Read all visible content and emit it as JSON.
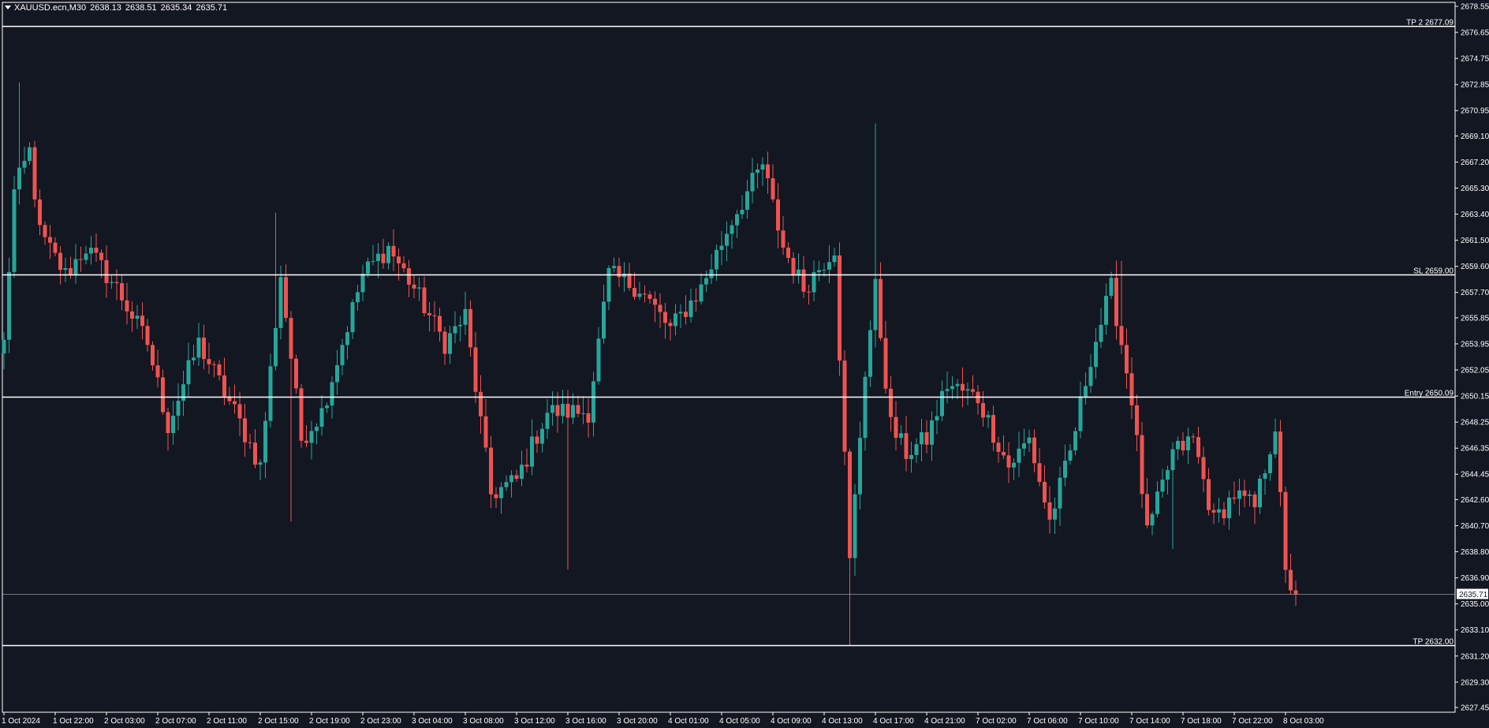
{
  "header": {
    "symbol": "XAUUSD.ecn,M30",
    "open": "2638.13",
    "high": "2638.51",
    "low": "2635.34",
    "close": "2635.71"
  },
  "levels": [
    {
      "label": "TP 2 2677.09",
      "price": 2677.09
    },
    {
      "label": "SL 2659.00",
      "price": 2659.0
    },
    {
      "label": "Entry 2650.09",
      "price": 2650.09
    },
    {
      "label": "TP 2632.00",
      "price": 2632.0
    }
  ],
  "current_price": {
    "label": "2635.71",
    "price": 2635.71
  },
  "colors": {
    "background": "#131722",
    "bull": "#26a69a",
    "bear": "#ef5350",
    "axis_text": "#ffffff",
    "level_line": "#ffffff"
  },
  "chart_data": {
    "type": "candlestick",
    "symbol": "XAUUSD.ecn",
    "timeframe": "M30",
    "ylim": [
      2627.45,
      2678.55
    ],
    "y_ticks": [
      "2678.55",
      "2676.65",
      "2674.75",
      "2672.85",
      "2670.95",
      "2669.10",
      "2667.20",
      "2665.30",
      "2663.40",
      "2661.50",
      "2659.60",
      "2657.70",
      "2655.85",
      "2653.95",
      "2652.05",
      "2650.15",
      "2648.25",
      "2646.35",
      "2644.45",
      "2642.60",
      "2640.70",
      "2638.80",
      "2636.90",
      "2635.00",
      "2633.10",
      "2631.20",
      "2629.30",
      "2627.45"
    ],
    "x_ticks": [
      {
        "label": "1 Oct 2024",
        "index": 0
      },
      {
        "label": "1 Oct 22:00",
        "index": 10
      },
      {
        "label": "2 Oct 03:00",
        "index": 20
      },
      {
        "label": "2 Oct 07:00",
        "index": 30
      },
      {
        "label": "2 Oct 11:00",
        "index": 40
      },
      {
        "label": "2 Oct 15:00",
        "index": 50
      },
      {
        "label": "2 Oct 19:00",
        "index": 60
      },
      {
        "label": "2 Oct 23:00",
        "index": 70
      },
      {
        "label": "3 Oct 04:00",
        "index": 80
      },
      {
        "label": "3 Oct 08:00",
        "index": 90
      },
      {
        "label": "3 Oct 12:00",
        "index": 100
      },
      {
        "label": "3 Oct 16:00",
        "index": 110
      },
      {
        "label": "3 Oct 20:00",
        "index": 120
      },
      {
        "label": "4 Oct 01:00",
        "index": 130
      },
      {
        "label": "4 Oct 05:00",
        "index": 140
      },
      {
        "label": "4 Oct 09:00",
        "index": 150
      },
      {
        "label": "4 Oct 13:00",
        "index": 160
      },
      {
        "label": "4 Oct 17:00",
        "index": 170
      },
      {
        "label": "4 Oct 21:00",
        "index": 180
      },
      {
        "label": "7 Oct 02:00",
        "index": 190
      },
      {
        "label": "7 Oct 06:00",
        "index": 200
      },
      {
        "label": "7 Oct 10:00",
        "index": 210
      },
      {
        "label": "7 Oct 14:00",
        "index": 220
      },
      {
        "label": "7 Oct 18:00",
        "index": 230
      },
      {
        "label": "7 Oct 22:00",
        "index": 240
      },
      {
        "label": "8 Oct 03:00",
        "index": 250
      }
    ],
    "anchors": [
      {
        "i": 0,
        "p": 2654
      },
      {
        "i": 2,
        "p": 2665
      },
      {
        "i": 5,
        "p": 2668
      },
      {
        "i": 7,
        "p": 2662
      },
      {
        "i": 12,
        "p": 2659
      },
      {
        "i": 16,
        "p": 2661
      },
      {
        "i": 22,
        "p": 2658
      },
      {
        "i": 28,
        "p": 2654
      },
      {
        "i": 32,
        "p": 2648
      },
      {
        "i": 38,
        "p": 2654
      },
      {
        "i": 45,
        "p": 2649
      },
      {
        "i": 50,
        "p": 2645
      },
      {
        "i": 54,
        "p": 2659
      },
      {
        "i": 58,
        "p": 2647
      },
      {
        "i": 62,
        "p": 2649
      },
      {
        "i": 66,
        "p": 2654
      },
      {
        "i": 70,
        "p": 2659
      },
      {
        "i": 75,
        "p": 2661
      },
      {
        "i": 80,
        "p": 2658
      },
      {
        "i": 86,
        "p": 2654
      },
      {
        "i": 90,
        "p": 2656
      },
      {
        "i": 95,
        "p": 2643
      },
      {
        "i": 100,
        "p": 2644
      },
      {
        "i": 106,
        "p": 2649
      },
      {
        "i": 110,
        "p": 2649
      },
      {
        "i": 114,
        "p": 2649
      },
      {
        "i": 118,
        "p": 2659
      },
      {
        "i": 124,
        "p": 2658
      },
      {
        "i": 130,
        "p": 2655
      },
      {
        "i": 136,
        "p": 2658
      },
      {
        "i": 142,
        "p": 2663
      },
      {
        "i": 148,
        "p": 2667
      },
      {
        "i": 152,
        "p": 2661
      },
      {
        "i": 156,
        "p": 2658
      },
      {
        "i": 162,
        "p": 2661
      },
      {
        "i": 165,
        "p": 2638
      },
      {
        "i": 168,
        "p": 2652
      },
      {
        "i": 170,
        "p": 2658
      },
      {
        "i": 173,
        "p": 2648
      },
      {
        "i": 176,
        "p": 2646
      },
      {
        "i": 180,
        "p": 2647
      },
      {
        "i": 184,
        "p": 2651
      },
      {
        "i": 190,
        "p": 2650
      },
      {
        "i": 196,
        "p": 2645
      },
      {
        "i": 200,
        "p": 2647
      },
      {
        "i": 204,
        "p": 2641
      },
      {
        "i": 208,
        "p": 2646
      },
      {
        "i": 212,
        "p": 2653
      },
      {
        "i": 216,
        "p": 2658
      },
      {
        "i": 220,
        "p": 2650
      },
      {
        "i": 223,
        "p": 2640
      },
      {
        "i": 228,
        "p": 2646
      },
      {
        "i": 232,
        "p": 2647
      },
      {
        "i": 236,
        "p": 2641
      },
      {
        "i": 240,
        "p": 2643
      },
      {
        "i": 244,
        "p": 2642
      },
      {
        "i": 248,
        "p": 2648
      },
      {
        "i": 250,
        "p": 2637
      },
      {
        "i": 252,
        "p": 2635.71
      }
    ],
    "wicks": [
      {
        "i": 3,
        "high": 2673
      },
      {
        "i": 53,
        "high": 2663.5
      },
      {
        "i": 56,
        "low": 2641
      },
      {
        "i": 110,
        "low": 2637.5
      },
      {
        "i": 146,
        "high": 2667.5
      },
      {
        "i": 170,
        "high": 2670
      },
      {
        "i": 165,
        "low": 2632
      },
      {
        "i": 218,
        "high": 2660
      },
      {
        "i": 228,
        "low": 2639
      }
    ],
    "candle_count": 253
  }
}
